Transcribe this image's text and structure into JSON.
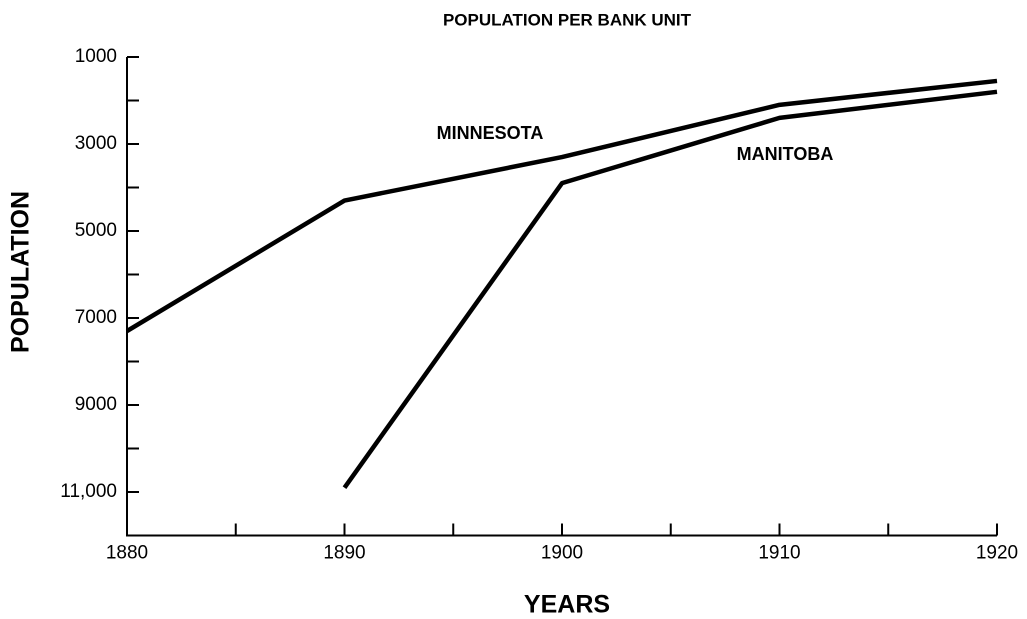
{
  "chart_data": {
    "type": "line",
    "title": "POPULATION PER BANK UNIT",
    "xlabel": "YEARS",
    "ylabel": "POPULATION",
    "x": [
      1880,
      1890,
      1900,
      1910,
      1920
    ],
    "series": [
      {
        "name": "MINNESOTA",
        "color": "#000000",
        "values": [
          7300,
          4300,
          3300,
          2100,
          1550
        ]
      },
      {
        "name": "MANITOBA",
        "color": "#000000",
        "values": [
          null,
          10900,
          3900,
          2400,
          1800
        ]
      }
    ],
    "xlim": [
      1880,
      1920
    ],
    "xticks": [
      1880,
      1890,
      1900,
      1910,
      1920
    ],
    "xminor_ticks": [
      1885,
      1895,
      1905,
      1915
    ],
    "ylim": [
      12000,
      1000
    ],
    "yticks": [
      1000,
      3000,
      5000,
      7000,
      9000,
      {
        "value": 11000,
        "label": "11,000"
      }
    ],
    "yminor_ticks": [
      2000,
      4000,
      6000,
      8000,
      10000
    ],
    "grid": false
  }
}
